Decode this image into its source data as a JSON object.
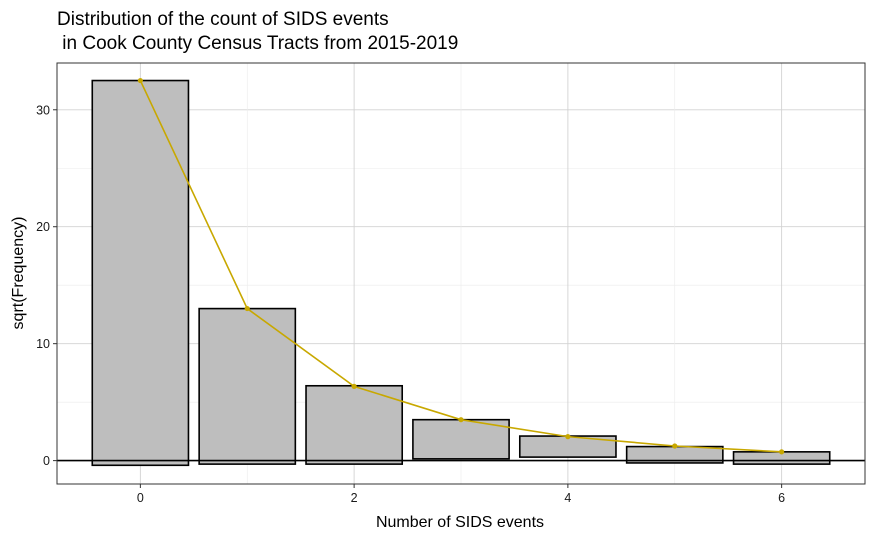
{
  "chart_data": {
    "type": "bar",
    "title_lines": [
      "Distribution of the count of SIDS events",
      " in Cook County Census Tracts from 2015-2019"
    ],
    "xlabel": "Number of SIDS events",
    "ylabel": "sqrt(Frequency)",
    "xlim": [
      -0.78,
      6.78
    ],
    "ylim": [
      -2,
      34
    ],
    "x_ticks": [
      0,
      2,
      4,
      6
    ],
    "y_ticks": [
      0,
      10,
      20,
      30
    ],
    "grid": true,
    "legend": "none",
    "bars": [
      {
        "x": 0,
        "ymin": -0.4,
        "ymax": 32.5
      },
      {
        "x": 1,
        "ymin": -0.3,
        "ymax": 13.0
      },
      {
        "x": 2,
        "ymin": -0.3,
        "ymax": 6.4
      },
      {
        "x": 3,
        "ymin": 0.15,
        "ymax": 3.5
      },
      {
        "x": 4,
        "ymin": 0.3,
        "ymax": 2.1
      },
      {
        "x": 5,
        "ymin": -0.2,
        "ymax": 1.2
      },
      {
        "x": 6,
        "ymin": -0.3,
        "ymax": 0.75
      }
    ],
    "curve": {
      "x": [
        0,
        1,
        2,
        3,
        4,
        5,
        6
      ],
      "y": [
        32.5,
        13.0,
        6.35,
        3.5,
        2.05,
        1.25,
        0.75
      ]
    },
    "reference_line_y": 0,
    "colors": {
      "bar_fill": "#bebebe",
      "bar_stroke": "#000000",
      "curve": "#c8a800",
      "grid_major": "#d2d2d2",
      "grid_minor": "#ebebeb",
      "panel_border": "#333333"
    }
  }
}
